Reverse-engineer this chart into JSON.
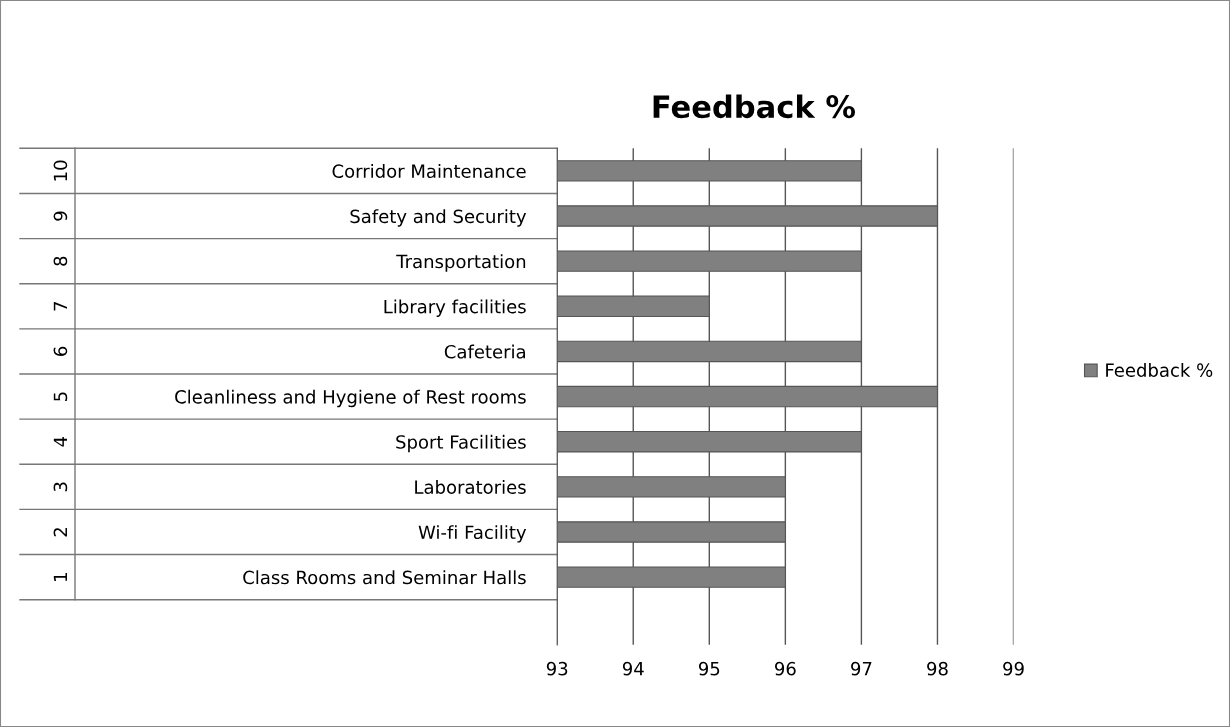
{
  "chart_data": {
    "type": "bar",
    "orientation": "horizontal",
    "title": "Feedback %",
    "categories": [
      "Corridor Maintenance",
      "Safety and Security",
      "Transportation",
      "Library facilities",
      "Cafeteria",
      "Cleanliness and Hygiene of Rest rooms",
      "Sport Facilities",
      "Laboratories",
      "Wi-fi Facility",
      "Class Rooms and Seminar Halls"
    ],
    "series": [
      {
        "name": "Feedback %",
        "color": "#808080",
        "values": [
          97,
          98,
          97,
          95,
          97,
          98,
          97,
          96,
          96,
          96
        ]
      }
    ],
    "annotations": [
      "10",
      "9",
      "8",
      "7",
      "6",
      "5",
      "4",
      "3",
      "2",
      "1"
    ],
    "xlim": [
      93,
      99
    ],
    "xticks": [
      93,
      94,
      95,
      96,
      97,
      98,
      99
    ],
    "grid": "x",
    "legend": "right"
  }
}
